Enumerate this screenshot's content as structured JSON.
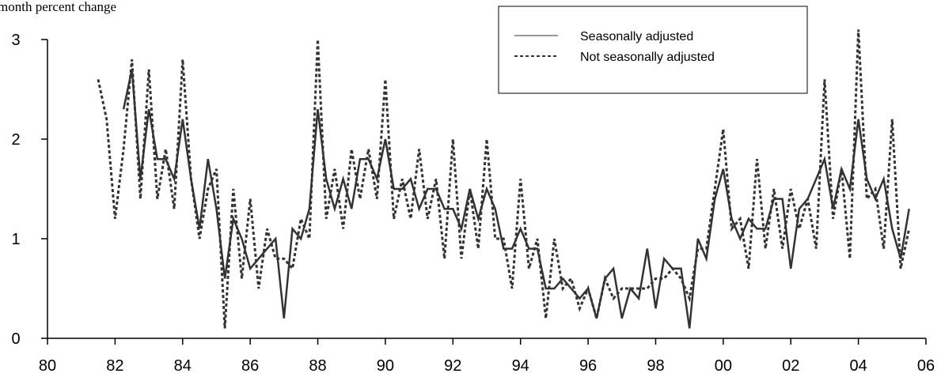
{
  "chart_data": {
    "type": "line",
    "title": "month percent change",
    "x": [
      1981.5,
      1981.75,
      1982,
      1982.25,
      1982.5,
      1982.75,
      1983,
      1983.25,
      1983.5,
      1983.75,
      1984,
      1984.25,
      1984.5,
      1984.75,
      1985,
      1985.25,
      1985.5,
      1985.75,
      1986,
      1986.25,
      1986.5,
      1986.75,
      1987,
      1987.25,
      1987.5,
      1987.75,
      1988,
      1988.25,
      1988.5,
      1988.75,
      1989,
      1989.25,
      1989.5,
      1989.75,
      1990,
      1990.25,
      1990.5,
      1990.75,
      1991,
      1991.25,
      1991.5,
      1991.75,
      1992,
      1992.25,
      1992.5,
      1992.75,
      1993,
      1993.25,
      1993.5,
      1993.75,
      1994,
      1994.25,
      1994.5,
      1994.75,
      1995,
      1995.25,
      1995.5,
      1995.75,
      1996,
      1996.25,
      1996.5,
      1996.75,
      1997,
      1997.25,
      1997.5,
      1997.75,
      1998,
      1998.25,
      1998.5,
      1998.75,
      1999,
      1999.25,
      1999.5,
      1999.75,
      2000,
      2000.25,
      2000.5,
      2000.75,
      2001,
      2001.25,
      2001.5,
      2001.75,
      2002,
      2002.25,
      2002.5,
      2002.75,
      2003,
      2003.25,
      2003.5,
      2003.75,
      2004,
      2004.25,
      2004.5,
      2004.75,
      2005,
      2005.25,
      2005.5
    ],
    "series": [
      {
        "name": "Seasonally adjusted",
        "color": "#333333",
        "dash": "solid",
        "values": [
          null,
          null,
          null,
          2.3,
          2.7,
          1.6,
          2.3,
          1.8,
          1.8,
          1.6,
          2.2,
          1.6,
          1.1,
          1.8,
          1.3,
          0.6,
          1.2,
          1.0,
          0.7,
          0.8,
          0.9,
          1.0,
          0.2,
          1.1,
          1.0,
          1.3,
          2.3,
          1.6,
          1.3,
          1.6,
          1.3,
          1.8,
          1.8,
          1.6,
          2.0,
          1.5,
          1.5,
          1.6,
          1.3,
          1.5,
          1.5,
          1.3,
          1.3,
          1.1,
          1.5,
          1.2,
          1.5,
          1.3,
          0.9,
          0.9,
          1.1,
          0.9,
          0.9,
          0.5,
          0.5,
          0.6,
          0.5,
          0.4,
          0.5,
          0.2,
          0.6,
          0.7,
          0.2,
          0.5,
          0.4,
          0.9,
          0.3,
          0.8,
          0.7,
          0.7,
          0.1,
          1.0,
          0.8,
          1.4,
          1.7,
          1.2,
          1.0,
          1.2,
          1.1,
          1.1,
          1.4,
          1.4,
          0.7,
          1.3,
          1.4,
          1.6,
          1.8,
          1.3,
          1.7,
          1.5,
          2.2,
          1.6,
          1.4,
          1.6,
          1.1,
          0.8,
          1.3
        ]
      },
      {
        "name": "Not seasonally adjusted",
        "color": "#333333",
        "dash": "dotted",
        "values": [
          2.6,
          2.2,
          1.2,
          1.9,
          2.8,
          1.4,
          2.7,
          1.4,
          1.9,
          1.3,
          2.8,
          1.6,
          1.0,
          1.5,
          1.7,
          0.1,
          1.5,
          0.6,
          1.4,
          0.5,
          1.1,
          0.8,
          0.8,
          0.7,
          1.2,
          1.0,
          3.0,
          1.2,
          1.7,
          1.1,
          1.9,
          1.4,
          1.9,
          1.4,
          2.6,
          1.2,
          1.6,
          1.2,
          1.9,
          1.2,
          1.6,
          0.8,
          2.0,
          0.8,
          1.5,
          0.9,
          2.0,
          1.0,
          1.0,
          0.5,
          1.6,
          0.7,
          1.0,
          0.2,
          1.0,
          0.5,
          0.6,
          0.3,
          0.5,
          0.2,
          0.6,
          0.4,
          0.5,
          0.5,
          0.5,
          0.5,
          0.6,
          0.6,
          0.7,
          0.6,
          0.4,
          0.9,
          0.9,
          1.5,
          2.1,
          1.1,
          1.2,
          0.7,
          1.8,
          0.9,
          1.5,
          0.9,
          1.5,
          1.1,
          1.4,
          0.9,
          2.6,
          1.2,
          1.7,
          0.8,
          3.1,
          1.4,
          1.5,
          0.9,
          2.2,
          0.7,
          1.1
        ]
      }
    ],
    "xlim": [
      1980,
      2006
    ],
    "xticks": [
      {
        "value": 1980,
        "label": "80"
      },
      {
        "value": 1982,
        "label": "82"
      },
      {
        "value": 1984,
        "label": "84"
      },
      {
        "value": 1986,
        "label": "86"
      },
      {
        "value": 1988,
        "label": "88"
      },
      {
        "value": 1990,
        "label": "90"
      },
      {
        "value": 1992,
        "label": "92"
      },
      {
        "value": 1994,
        "label": "94"
      },
      {
        "value": 1996,
        "label": "96"
      },
      {
        "value": 1998,
        "label": "98"
      },
      {
        "value": 2000,
        "label": "00"
      },
      {
        "value": 2002,
        "label": "02"
      },
      {
        "value": 2004,
        "label": "04"
      },
      {
        "value": 2006,
        "label": "06"
      }
    ],
    "ylim": [
      0,
      3
    ],
    "yticks": [
      0,
      1,
      2,
      3
    ],
    "grid": false,
    "legend": "top-right"
  }
}
